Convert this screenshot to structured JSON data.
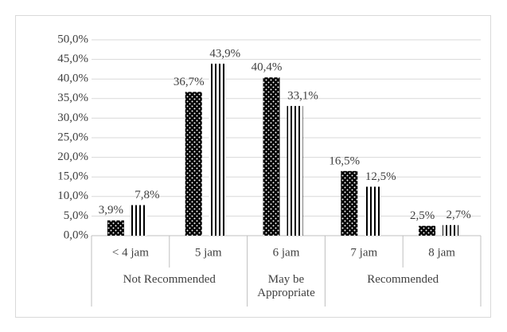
{
  "chart_data": {
    "type": "bar",
    "categories": [
      "< 4 jam",
      "5 jam",
      "6 jam",
      "7 jam",
      "8 jam"
    ],
    "category_groups": [
      {
        "label": "Not Recommended",
        "count": 2
      },
      {
        "label": "May be Appropriate",
        "count": 1
      },
      {
        "label": "Recommended",
        "count": 2
      }
    ],
    "series": [
      {
        "color": "#000000",
        "pattern": "dots",
        "values": [
          3.9,
          36.7,
          40.4,
          16.5,
          2.5
        ],
        "value_labels": [
          "3,9%",
          "36,7%",
          "40,4%",
          "16,5%",
          "2,5%"
        ]
      },
      {
        "color": "#000000",
        "pattern": "stripes",
        "values": [
          7.8,
          43.9,
          33.1,
          12.5,
          2.7
        ],
        "value_labels": [
          "7,8%",
          "43,9%",
          "33,1%",
          "12,5%",
          "2,7%"
        ]
      }
    ],
    "ylim": [
      0,
      50
    ],
    "yticks": [
      {
        "value": 0,
        "label": "0,0%"
      },
      {
        "value": 5,
        "label": "5,0%"
      },
      {
        "value": 10,
        "label": "10,0%"
      },
      {
        "value": 15,
        "label": "15,0%"
      },
      {
        "value": 20,
        "label": "20,0%"
      },
      {
        "value": 25,
        "label": "25,0%"
      },
      {
        "value": 30,
        "label": "30,0%"
      },
      {
        "value": 35,
        "label": "35,0%"
      },
      {
        "value": 40,
        "label": "40,0%"
      },
      {
        "value": 45,
        "label": "45,0%"
      },
      {
        "value": 50,
        "label": "50,0%"
      }
    ],
    "grid": true
  }
}
